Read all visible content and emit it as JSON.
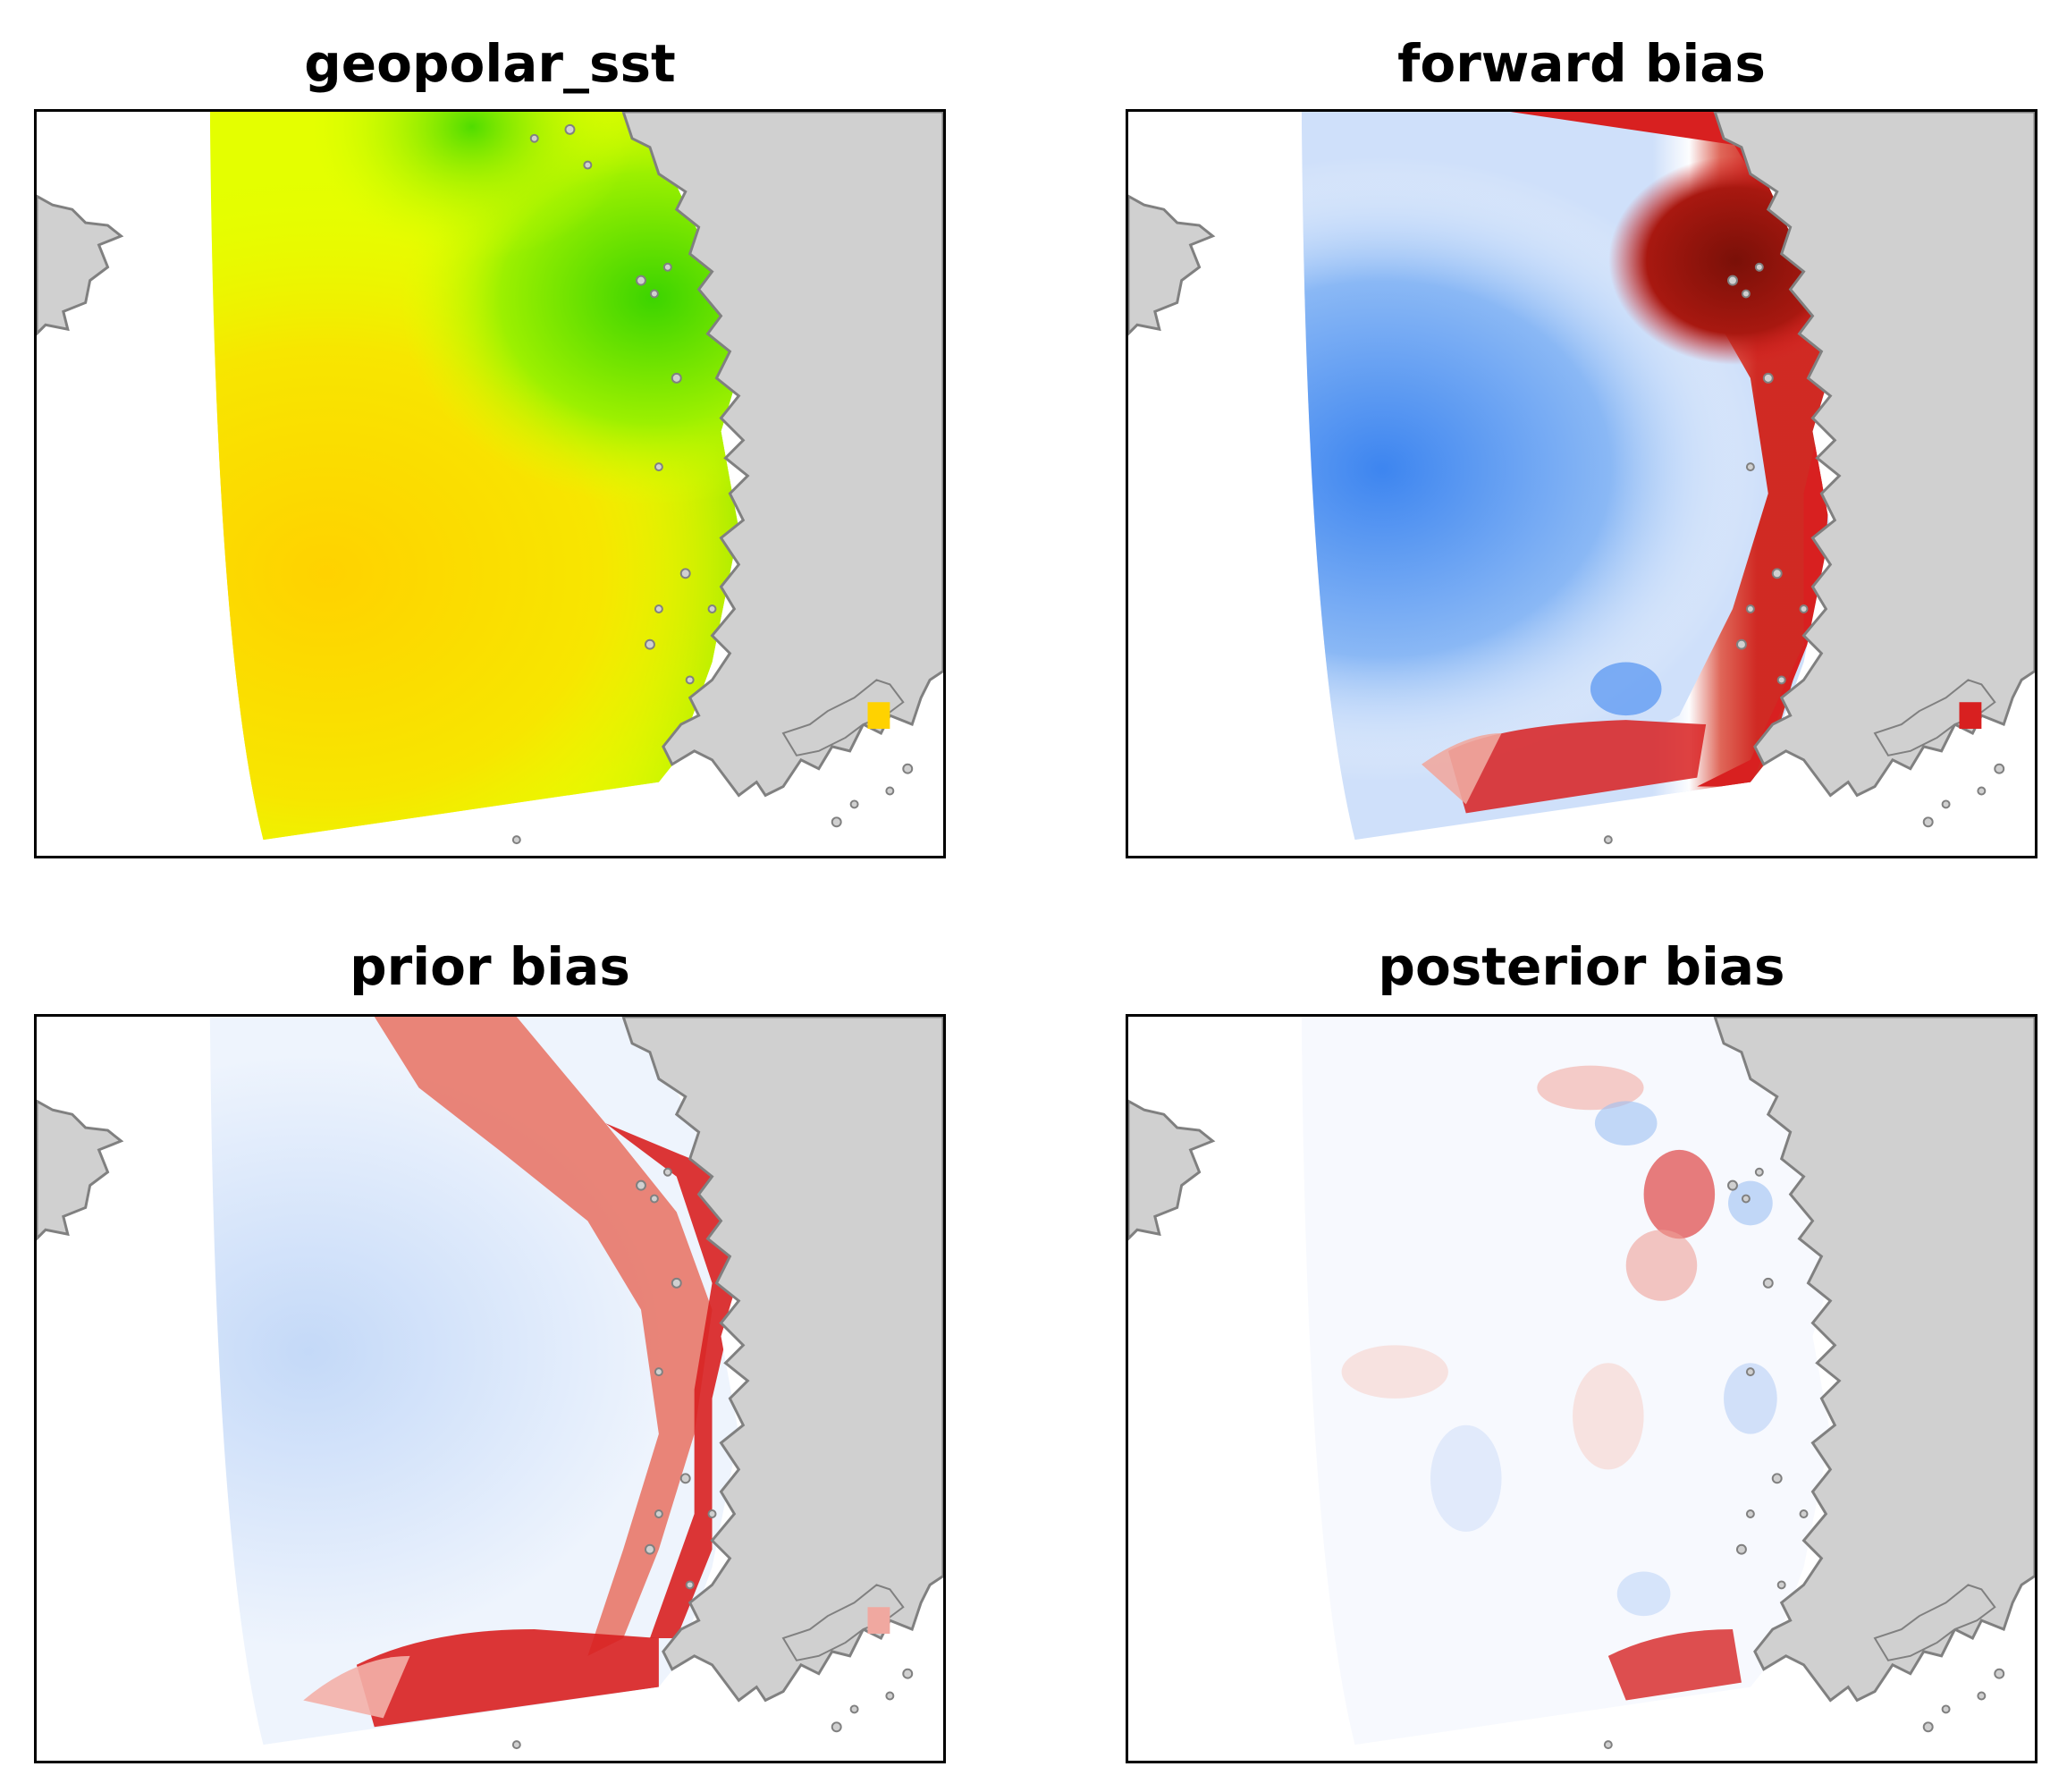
{
  "figure": {
    "panels": [
      {
        "id": "geopolar_sst",
        "title": "geopolar_sst",
        "colormap": "sst"
      },
      {
        "id": "forward_bias",
        "title": "forward bias",
        "colormap": "diverging"
      },
      {
        "id": "prior_bias",
        "title": "prior bias",
        "colormap": "diverging"
      },
      {
        "id": "posterior_bias",
        "title": "posterior bias",
        "colormap": "diverging"
      }
    ]
  },
  "colors": {
    "land": "#d0d0d0",
    "coastline": "#808080",
    "frame": "#000000",
    "sst_warm": "#ffd200",
    "sst_mid": "#e8ff00",
    "sst_cool": "#40d000",
    "bias_negative": "#3d85f0",
    "bias_positive": "#d82020",
    "bias_strong_positive": "#7a1008"
  }
}
